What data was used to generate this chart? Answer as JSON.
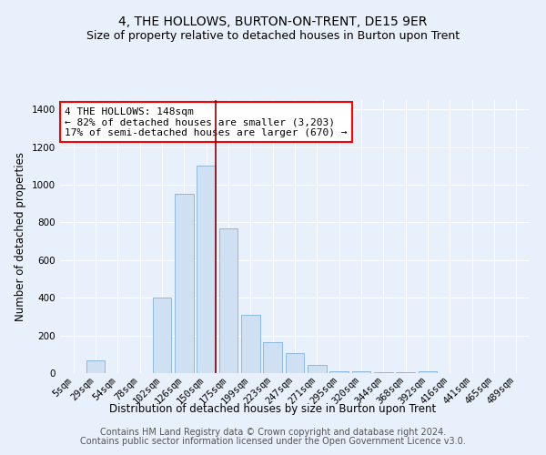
{
  "title": "4, THE HOLLOWS, BURTON-ON-TRENT, DE15 9ER",
  "subtitle": "Size of property relative to detached houses in Burton upon Trent",
  "xlabel": "Distribution of detached houses by size in Burton upon Trent",
  "ylabel": "Number of detached properties",
  "footer_line1": "Contains HM Land Registry data © Crown copyright and database right 2024.",
  "footer_line2": "Contains public sector information licensed under the Open Government Licence v3.0.",
  "categories": [
    "5sqm",
    "29sqm",
    "54sqm",
    "78sqm",
    "102sqm",
    "126sqm",
    "150sqm",
    "175sqm",
    "199sqm",
    "223sqm",
    "247sqm",
    "271sqm",
    "295sqm",
    "320sqm",
    "344sqm",
    "368sqm",
    "392sqm",
    "416sqm",
    "441sqm",
    "465sqm",
    "489sqm"
  ],
  "values": [
    0,
    70,
    0,
    0,
    400,
    950,
    1100,
    770,
    310,
    165,
    105,
    45,
    10,
    10,
    5,
    5,
    10,
    0,
    0,
    0,
    0
  ],
  "bar_color": "#cfe0f3",
  "bar_edge_color": "#7fb3d9",
  "vline_color": "#8b0000",
  "vline_index": 6.42,
  "annotation_text": "4 THE HOLLOWS: 148sqm\n← 82% of detached houses are smaller (3,203)\n17% of semi-detached houses are larger (670) →",
  "annotation_box_color": "white",
  "annotation_box_edge": "red",
  "ylim": [
    0,
    1450
  ],
  "yticks": [
    0,
    200,
    400,
    600,
    800,
    1000,
    1200,
    1400
  ],
  "background_color": "#e8f0fb",
  "plot_background": "#e8f0fb",
  "title_fontsize": 10,
  "subtitle_fontsize": 9,
  "annotation_fontsize": 8,
  "xlabel_fontsize": 8.5,
  "ylabel_fontsize": 8.5,
  "footer_fontsize": 7,
  "tick_fontsize": 7.5
}
